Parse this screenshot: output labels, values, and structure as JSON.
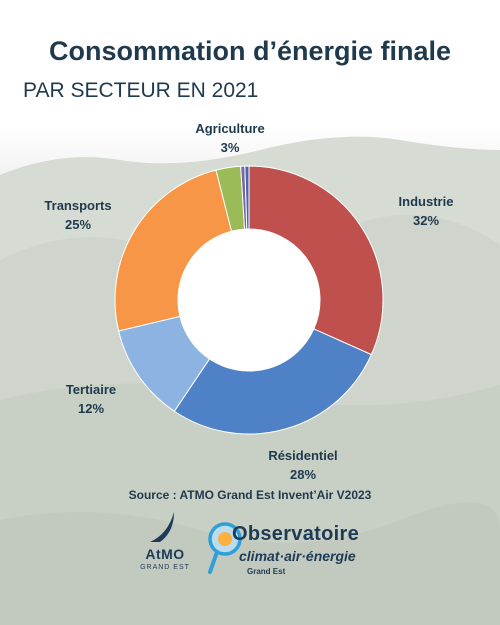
{
  "title": "Consommation d’énergie finale",
  "subtitle": "PAR SECTEUR EN 2021",
  "source": "Source : ATMO Grand Est Invent’Air V2023",
  "logos": {
    "atmo": "AtMO",
    "atmo_sub": "GRAND EST",
    "observatoire": "Observatoire",
    "observatoire_line2": "climat·air·énergie",
    "observatoire_line3": "Grand Est"
  },
  "chart_data": {
    "type": "donut",
    "title": "Consommation d’énergie finale",
    "subtitle": "PAR SECTEUR EN 2021",
    "start_angle_deg": 0,
    "slices": [
      {
        "label": "Industrie",
        "value": 32,
        "display": "32%",
        "color": "#c0504d"
      },
      {
        "label": "Résidentiel",
        "value": 28,
        "display": "28%",
        "color": "#4f81c7"
      },
      {
        "label": "Tertiaire",
        "value": 12,
        "display": "12%",
        "color": "#8db3e2"
      },
      {
        "label": "Transports",
        "value": 25,
        "display": "25%",
        "color": "#f79646"
      },
      {
        "label": "Agriculture",
        "value": 3,
        "display": "3%",
        "color": "#9bbb59"
      },
      {
        "label": "",
        "value": 0.5,
        "display": "",
        "color": "#8064a2"
      },
      {
        "label": "",
        "value": 0.5,
        "display": "",
        "color": "#4a66ac"
      }
    ]
  }
}
